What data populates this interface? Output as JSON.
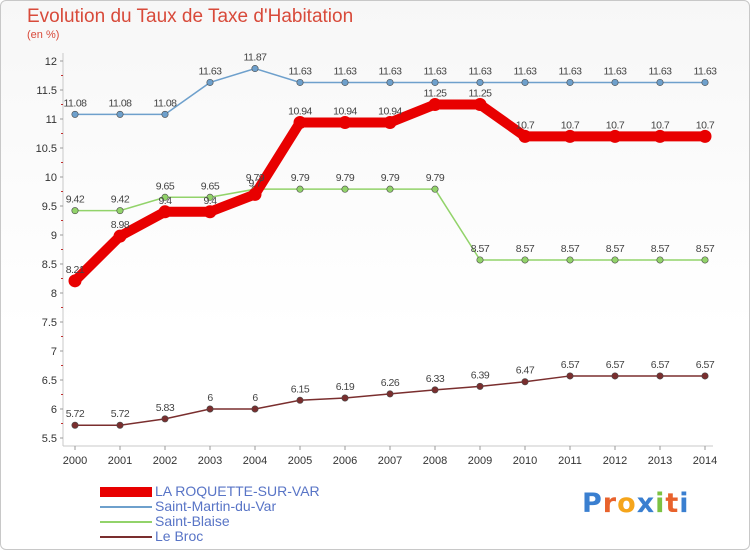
{
  "title": "Evolution du Taux de Taxe d'Habitation",
  "subtitle": "(en %)",
  "logo": {
    "text": "Proxiti",
    "colors": [
      "#3a7fd0",
      "#e8622c",
      "#f5a51b",
      "#3a7fd0",
      "#7cc242",
      "#e8622c",
      "#3a7fd0"
    ]
  },
  "chart_data": {
    "type": "line",
    "x": [
      "2000",
      "2001",
      "2002",
      "2003",
      "2004",
      "2005",
      "2006",
      "2007",
      "2008",
      "2009",
      "2010",
      "2011",
      "2012",
      "2013",
      "2014"
    ],
    "ylim": [
      5.5,
      12
    ],
    "yticks": [
      "5.5",
      "6",
      "6.5",
      "7",
      "7.5",
      "8",
      "8.5",
      "9",
      "9.5",
      "10",
      "10.5",
      "11",
      "11.5",
      "12"
    ],
    "grid": false,
    "legend_position": "bottom-left",
    "series": [
      {
        "name": "LA ROQUETTE-SUR-VAR",
        "color": "#e80000",
        "width": 10,
        "values": [
          8.21,
          8.98,
          9.4,
          9.4,
          9.7,
          10.94,
          10.94,
          10.94,
          11.25,
          11.25,
          10.7,
          10.7,
          10.7,
          10.7,
          10.7
        ],
        "labels": [
          "8.21",
          "8.98",
          "9.4",
          "9.4",
          "9.7",
          "10.94",
          "10.94",
          "10.94",
          "11.25",
          "11.25",
          "10.7",
          "10.7",
          "10.7",
          "10.7",
          "10.7"
        ]
      },
      {
        "name": "Saint-Martin-du-Var",
        "color": "#6ea0cc",
        "width": 1.5,
        "values": [
          11.08,
          11.08,
          11.08,
          11.63,
          11.87,
          11.63,
          11.63,
          11.63,
          11.63,
          11.63,
          11.63,
          11.63,
          11.63,
          11.63,
          11.63
        ],
        "labels": [
          "11.08",
          "11.08",
          "11.08",
          "11.63",
          "11.87",
          "11.63",
          "11.63",
          "11.63",
          "11.63",
          "11.63",
          "11.63",
          "11.63",
          "11.63",
          "11.63",
          "11.63"
        ]
      },
      {
        "name": "Saint-Blaise",
        "color": "#92d36a",
        "width": 1.5,
        "values": [
          9.42,
          9.42,
          9.65,
          9.65,
          9.79,
          9.79,
          9.79,
          9.79,
          9.79,
          8.57,
          8.57,
          8.57,
          8.57,
          8.57,
          8.57
        ],
        "labels": [
          "9.42",
          "9.42",
          "9.65",
          "9.65",
          "9.79",
          "9.79",
          "9.79",
          "9.79",
          "9.79",
          "8.57",
          "8.57",
          "8.57",
          "8.57",
          "8.57",
          "8.57"
        ]
      },
      {
        "name": "Le Broc",
        "color": "#7a2e2e",
        "width": 1.5,
        "values": [
          5.72,
          5.72,
          5.83,
          6,
          6,
          6.15,
          6.19,
          6.26,
          6.33,
          6.39,
          6.47,
          6.57,
          6.57,
          6.57,
          6.57
        ],
        "labels": [
          "5.72",
          "5.72",
          "5.83",
          "6",
          "6",
          "6.15",
          "6.19",
          "6.26",
          "6.33",
          "6.39",
          "6.47",
          "6.57",
          "6.57",
          "6.57",
          "6.57"
        ]
      }
    ]
  }
}
